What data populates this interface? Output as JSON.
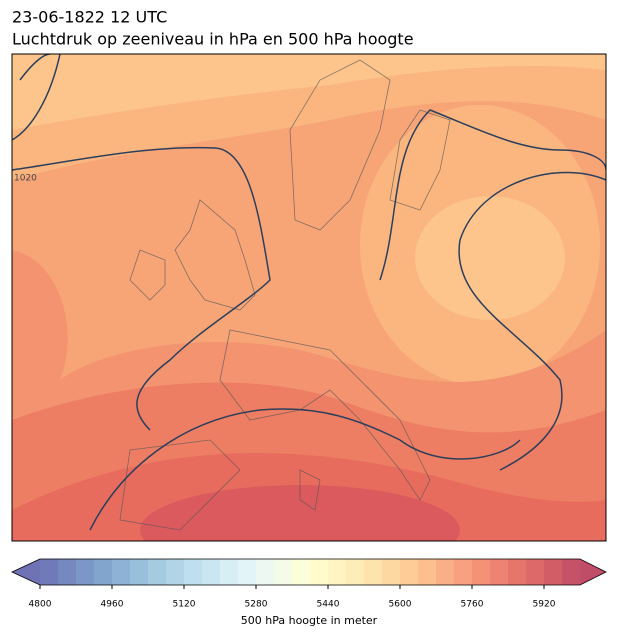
{
  "header": {
    "title": "23-06-1822 12 UTC",
    "subtitle": "Luchtdruk op zeeniveau in hPa en 500 hPa hoogte"
  },
  "map": {
    "contour_label": "1020"
  },
  "colorbar": {
    "label": "500 hPa hoogte in meter",
    "xlim": [
      4800,
      6000
    ],
    "xticks": [
      4800,
      4960,
      5120,
      5280,
      5440,
      5600,
      5760,
      5920
    ]
  }
}
